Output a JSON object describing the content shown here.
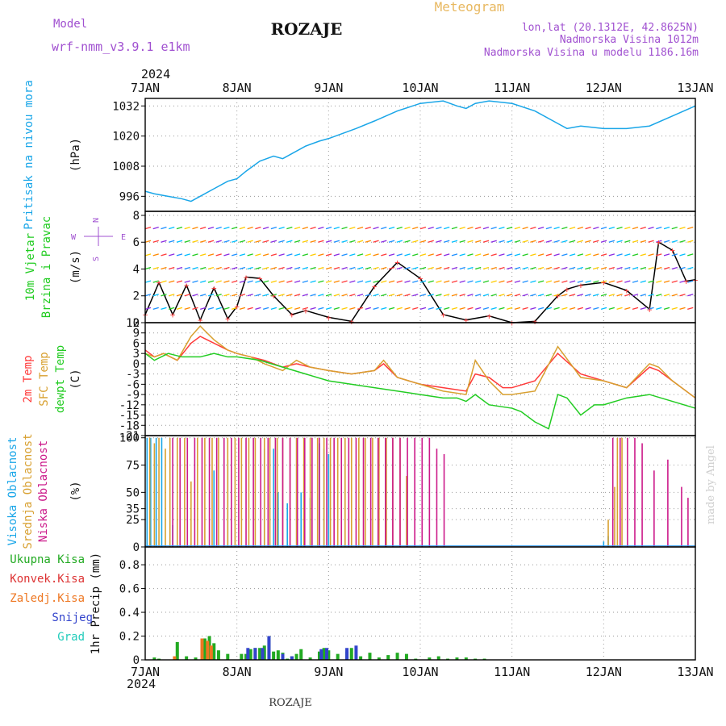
{
  "header": {
    "model_label": "Model",
    "model_name": "wrf-nmm_v3.9.1  e1km",
    "station": "ROZAJE",
    "product": "Meteogram",
    "lonlat": "lon,lat (20.1312E, 42.8625N)",
    "elevation": "Nadmorska Visina 1012m",
    "model_elevation": "Nadmorska Visina u modelu 1186.16m"
  },
  "footer": {
    "station": "ROZAJE",
    "credit": "made by Angel"
  },
  "colors": {
    "pressure": "#1aa6e8",
    "wind_line": "#000000",
    "wind_marker": "#ff3a3a",
    "t2m": "#ff3a3a",
    "sfc_temp": "#d8a030",
    "dewpoint": "#22cc22",
    "cloud_high": "#1aa6e8",
    "cloud_mid": "#d8a030",
    "cloud_low": "#cc1a8a",
    "precip_total": "#22aa22",
    "precip_conv": "#dd3333",
    "precip_frz": "#ee7722",
    "precip_snow": "#3344cc",
    "precip_grad": "#22ccbb"
  },
  "chart_data": {
    "type": "line",
    "x_axis": {
      "year_label": "2024",
      "ticks": [
        "7JAN",
        "8JAN",
        "9JAN",
        "10JAN",
        "11JAN",
        "12JAN",
        "13JAN"
      ],
      "range_days": [
        0,
        6
      ]
    },
    "panels": [
      {
        "id": "pressure",
        "ylabel_lines": [
          "Pritisak na nivou mora"
        ],
        "unit": "(hPa)",
        "yticks": [
          "1032",
          "1020",
          "1008",
          "996"
        ],
        "ylim": [
          990,
          1035
        ],
        "series": [
          {
            "key": "pressure",
            "x": [
              0,
              0.1,
              0.25,
              0.4,
              0.5,
              0.6,
              0.75,
              0.9,
              1.0,
              1.1,
              1.25,
              1.4,
              1.5,
              1.6,
              1.75,
              1.9,
              2.0,
              2.15,
              2.3,
              2.5,
              2.75,
              3.0,
              3.25,
              3.4,
              3.5,
              3.6,
              3.75,
              4.0,
              4.25,
              4.5,
              4.6,
              4.75,
              5.0,
              5.25,
              5.5,
              5.75,
              6.0
            ],
            "y": [
              998,
              997,
              996,
              995,
              994,
              996,
              999,
              1002,
              1003,
              1006,
              1010,
              1012,
              1011,
              1013,
              1016,
              1018,
              1019,
              1021,
              1023,
              1026,
              1030,
              1033,
              1034,
              1032,
              1031,
              1033,
              1034,
              1033,
              1030,
              1025,
              1023,
              1024,
              1023,
              1023,
              1024,
              1028,
              1032
            ]
          }
        ]
      },
      {
        "id": "wind",
        "ylabel_lines": [
          "10m Vjetar",
          "Brzina i Pravac"
        ],
        "unit": "(m/s)",
        "yticks": [
          "8",
          "6",
          "4",
          "2",
          "0"
        ],
        "ylim": [
          0,
          8.3
        ],
        "compass": [
          "N",
          "S",
          "W",
          "E"
        ],
        "series": [
          {
            "key": "wind_line",
            "x": [
              0,
              0.15,
              0.3,
              0.45,
              0.6,
              0.75,
              0.9,
              1.0,
              1.1,
              1.25,
              1.4,
              1.6,
              1.75,
              2.0,
              2.25,
              2.5,
              2.75,
              3.0,
              3.25,
              3.5,
              3.75,
              4.0,
              4.25,
              4.5,
              4.6,
              4.75,
              5.0,
              5.25,
              5.5,
              5.6,
              5.75,
              5.9,
              6.0
            ],
            "y": [
              0.6,
              3.0,
              0.6,
              2.8,
              0.2,
              2.6,
              0.3,
              1.2,
              3.4,
              3.3,
              2.0,
              0.6,
              0.9,
              0.4,
              0.1,
              2.7,
              4.5,
              3.3,
              0.6,
              0.2,
              0.5,
              0.0,
              0.1,
              2.0,
              2.5,
              2.8,
              3.0,
              2.4,
              1.0,
              6.0,
              5.4,
              3.1,
              3.2
            ]
          }
        ]
      },
      {
        "id": "temperature",
        "ylabel_lines": [
          "2m Temp",
          "SFC Temp",
          "dewpt Temp"
        ],
        "unit": "(C)",
        "yticks": [
          "12",
          "9",
          "6",
          "3",
          "0",
          "-3",
          "-6",
          "-9",
          "-12",
          "-15",
          "-18",
          "-21"
        ],
        "ylim": [
          -21,
          12
        ],
        "series": [
          {
            "key": "t2m",
            "x": [
              0,
              0.1,
              0.2,
              0.35,
              0.5,
              0.6,
              0.75,
              0.9,
              1.0,
              1.15,
              1.3,
              1.5,
              1.65,
              1.8,
              2.0,
              2.25,
              2.5,
              2.6,
              2.75,
              3.0,
              3.25,
              3.5,
              3.6,
              3.75,
              3.9,
              4.0,
              4.25,
              4.5,
              4.75,
              5.0,
              5.25,
              5.5,
              5.6,
              5.75,
              6.0
            ],
            "y": [
              4,
              2,
              3,
              1,
              6,
              8,
              6,
              4,
              3,
              2,
              1,
              -1,
              0,
              -1,
              -2,
              -3,
              -2,
              0,
              -4,
              -6,
              -7,
              -8,
              -3,
              -4,
              -7,
              -7,
              -5,
              3,
              -3,
              -5,
              -7,
              -1,
              -2,
              -5,
              -10
            ]
          },
          {
            "key": "sfc_temp",
            "x": [
              0,
              0.1,
              0.2,
              0.35,
              0.5,
              0.6,
              0.75,
              0.9,
              1.0,
              1.15,
              1.3,
              1.5,
              1.65,
              1.8,
              2.0,
              2.25,
              2.5,
              2.6,
              2.75,
              3.0,
              3.25,
              3.5,
              3.6,
              3.75,
              3.9,
              4.0,
              4.25,
              4.5,
              4.75,
              5.0,
              5.25,
              5.5,
              5.6,
              5.75,
              6.0
            ],
            "y": [
              3,
              2,
              3,
              1,
              8,
              11,
              7,
              4,
              3,
              2,
              0,
              -2,
              1,
              -1,
              -2,
              -3,
              -2,
              1,
              -4,
              -6,
              -8,
              -9,
              1,
              -5,
              -9,
              -9,
              -8,
              5,
              -4,
              -5,
              -7,
              0,
              -1,
              -5,
              -10
            ]
          },
          {
            "key": "dewpoint",
            "x": [
              0,
              0.1,
              0.25,
              0.4,
              0.6,
              0.75,
              0.9,
              1.0,
              1.25,
              1.5,
              1.75,
              2.0,
              2.5,
              3.0,
              3.25,
              3.4,
              3.5,
              3.6,
              3.75,
              4.0,
              4.1,
              4.25,
              4.4,
              4.5,
              4.6,
              4.75,
              4.9,
              5.0,
              5.25,
              5.5,
              5.75,
              6.0
            ],
            "y": [
              3,
              1,
              3,
              2,
              2,
              3,
              2,
              2,
              1,
              -1,
              -3,
              -5,
              -7,
              -9,
              -10,
              -10,
              -11,
              -9,
              -12,
              -13,
              -14,
              -17,
              -19,
              -9,
              -10,
              -15,
              -12,
              -12,
              -10,
              -9,
              -11,
              -13
            ]
          }
        ]
      },
      {
        "id": "clouds",
        "ylabel_lines": [
          "Visoka Oblacnost",
          "Srednja Oblacnost",
          "Niska Oblacnost"
        ],
        "unit": "(%)",
        "yticks": [
          "100",
          "75",
          "50",
          "35",
          "25",
          "0"
        ],
        "ylim": [
          0,
          102
        ],
        "series": [
          {
            "key": "cloud_high",
            "x": [
              0.02,
              0.06,
              0.12,
              0.18,
              0.3,
              0.75,
              0.9,
              1.3,
              1.4,
              1.45,
              1.55,
              1.7,
              1.8,
              1.9,
              1.95,
              2.0,
              5.0,
              5.05
            ],
            "y": [
              100,
              100,
              100,
              100,
              20,
              70,
              80,
              90,
              90,
              50,
              40,
              50,
              45,
              95,
              90,
              85,
              5,
              10
            ]
          },
          {
            "key": "cloud_mid",
            "x": [
              0.05,
              0.1,
              0.15,
              0.22,
              0.27,
              0.35,
              0.43,
              0.5,
              0.57,
              0.65,
              0.73,
              0.8,
              0.9,
              0.98,
              1.05,
              1.13,
              1.2,
              1.3,
              1.36,
              1.44,
              1.5,
              1.58,
              1.65,
              1.73,
              1.8,
              1.88,
              1.95,
              2.02,
              2.1,
              2.18,
              2.25,
              2.33,
              2.4,
              2.48,
              2.55,
              2.63,
              2.7,
              2.78,
              2.85,
              5.05,
              5.12,
              5.15,
              5.2
            ],
            "y": [
              100,
              95,
              100,
              90,
              100,
              100,
              100,
              60,
              100,
              100,
              100,
              100,
              100,
              100,
              100,
              100,
              100,
              100,
              100,
              100,
              100,
              100,
              100,
              100,
              100,
              100,
              100,
              100,
              100,
              100,
              100,
              100,
              100,
              100,
              100,
              100,
              100,
              100,
              65,
              25,
              55,
              100,
              100
            ]
          },
          {
            "key": "cloud_low",
            "x": [
              0.3,
              0.38,
              0.46,
              0.54,
              0.62,
              0.7,
              0.78,
              0.86,
              0.94,
              1.02,
              1.1,
              1.18,
              1.26,
              1.34,
              1.42,
              1.5,
              1.58,
              1.66,
              1.74,
              1.82,
              1.9,
              1.98,
              2.06,
              2.14,
              2.22,
              2.3,
              2.38,
              2.46,
              2.54,
              2.62,
              2.7,
              2.78,
              2.86,
              2.94,
              3.02,
              3.1,
              3.18,
              3.26,
              5.1,
              5.18,
              5.26,
              5.34,
              5.42,
              5.55,
              5.7,
              5.85,
              5.92
            ],
            "y": [
              100,
              100,
              100,
              100,
              100,
              100,
              100,
              100,
              100,
              100,
              100,
              100,
              100,
              100,
              100,
              100,
              100,
              100,
              100,
              100,
              100,
              100,
              100,
              100,
              100,
              100,
              100,
              100,
              100,
              100,
              100,
              100,
              100,
              100,
              100,
              100,
              90,
              85,
              100,
              100,
              100,
              100,
              95,
              70,
              80,
              55,
              45
            ]
          }
        ]
      },
      {
        "id": "precip",
        "ylabel_lines": [
          "1hr Precip (mm)"
        ],
        "unit": "",
        "yticks": [
          "0.8",
          "0.6",
          "0.4",
          "0.2",
          "0"
        ],
        "ylim": [
          0,
          0.95
        ],
        "legend": [
          "Ukupna Kisa",
          "Konvek.Kisa",
          "Zaledj.Kisa",
          "Snijeg",
          "Grad"
        ],
        "series": [
          {
            "key": "precip_total",
            "x": [
              0.1,
              0.15,
              0.35,
              0.45,
              0.55,
              0.65,
              0.7,
              0.75,
              0.8,
              0.9,
              1.05,
              1.1,
              1.15,
              1.2,
              1.25,
              1.3,
              1.35,
              1.4,
              1.45,
              1.5,
              1.55,
              1.6,
              1.65,
              1.7,
              1.8,
              1.9,
              1.95,
              2.0,
              2.1,
              2.2,
              2.25,
              2.35,
              2.45,
              2.55,
              2.65,
              2.75,
              2.85,
              2.95,
              3.1,
              3.2,
              3.3,
              3.4,
              3.5,
              3.6,
              3.7
            ],
            "y": [
              0.02,
              0.01,
              0.15,
              0.03,
              0.02,
              0.18,
              0.2,
              0.14,
              0.08,
              0.05,
              0.05,
              0.05,
              0.09,
              0.1,
              0.1,
              0.12,
              0.2,
              0.07,
              0.08,
              0.06,
              0.01,
              0.03,
              0.05,
              0.09,
              0.02,
              0.07,
              0.1,
              0.08,
              0.05,
              0.07,
              0.1,
              0.03,
              0.06,
              0.02,
              0.04,
              0.06,
              0.05,
              0.01,
              0.02,
              0.03,
              0.01,
              0.02,
              0.02,
              0.01,
              0.01
            ]
          },
          {
            "key": "precip_snow",
            "x": [
              1.12,
              1.2,
              1.28,
              1.35,
              1.5,
              1.6,
              1.92,
              1.98,
              2.2,
              2.3
            ],
            "y": [
              0.1,
              0.1,
              0.1,
              0.2,
              0.05,
              0.03,
              0.09,
              0.1,
              0.1,
              0.12
            ]
          },
          {
            "key": "precip_frz",
            "x": [
              0.32,
              0.62,
              0.68,
              0.72
            ],
            "y": [
              0.03,
              0.18,
              0.16,
              0.12
            ]
          }
        ]
      }
    ]
  }
}
